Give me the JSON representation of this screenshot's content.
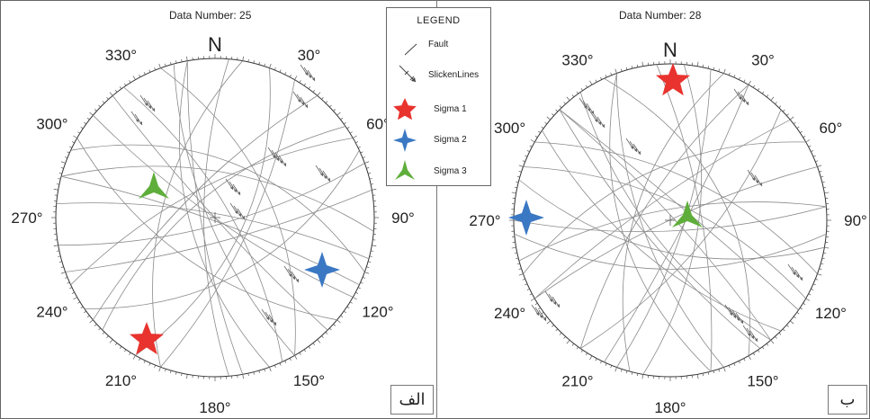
{
  "panels": [
    {
      "id": "alef",
      "title": "Data Number: 25",
      "tag": "الف",
      "north_label": "N",
      "degree_labels": [
        "30°",
        "60°",
        "90°",
        "120°",
        "150°",
        "180°",
        "210°",
        "240°",
        "270°",
        "300°",
        "330°"
      ],
      "sigma_colors": {
        "sigma1": "#e8332e",
        "sigma2": "#3b78c3",
        "sigma3": "#5fae3b"
      }
    },
    {
      "id": "be",
      "title": "Data Number: 28",
      "tag": "ب",
      "north_label": "N",
      "degree_labels": [
        "30°",
        "60°",
        "90°",
        "120°",
        "150°",
        "180°",
        "210°",
        "240°",
        "270°",
        "300°",
        "330°"
      ],
      "sigma_colors": {
        "sigma1": "#e8332e",
        "sigma2": "#3b78c3",
        "sigma3": "#5fae3b"
      }
    }
  ],
  "legend": {
    "title": "LEGEND",
    "items": [
      {
        "label": "Fault",
        "icon": "fault-line-icon"
      },
      {
        "label": "SlickenLines",
        "icon": "slickenline-icon"
      },
      {
        "label": "Sigma 1",
        "icon": "star-icon",
        "color": "#e8332e"
      },
      {
        "label": "Sigma 2",
        "icon": "four-point-star-icon",
        "color": "#3b78c3"
      },
      {
        "label": "Sigma 3",
        "icon": "three-point-star-icon",
        "color": "#5fae3b"
      }
    ]
  }
}
